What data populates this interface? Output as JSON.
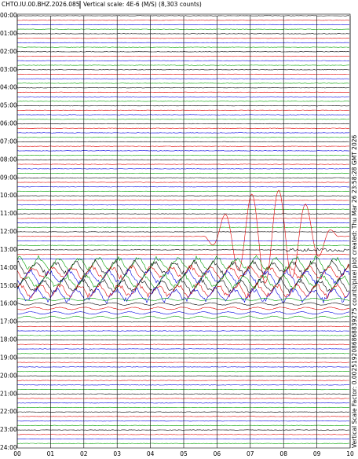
{
  "header": {
    "station": "CHTO.IU.00.BHZ.2026.085",
    "scale": "Vertical scale: 4E-6 (M/S) (8,303 counts)"
  },
  "y_labels": [
    "00:00",
    "01:00",
    "02:00",
    "03:00",
    "04:00",
    "05:00",
    "06:00",
    "07:00",
    "08:00",
    "09:00",
    "10:00",
    "11:00",
    "12:00",
    "13:00",
    "14:00",
    "15:00",
    "16:00",
    "17:00",
    "18:00",
    "19:00",
    "20:00",
    "21:00",
    "22:00",
    "23:00",
    "24:00"
  ],
  "x_labels": [
    "00",
    "01",
    "02",
    "03",
    "04",
    "05",
    "06",
    "07",
    "08",
    "09",
    "10"
  ],
  "side_note": "Vertical Scale Factor: 0.0025192086868839275 counts/pixel  plot created: Thu Mar 26 23:58:28 GMT 2026"
}
